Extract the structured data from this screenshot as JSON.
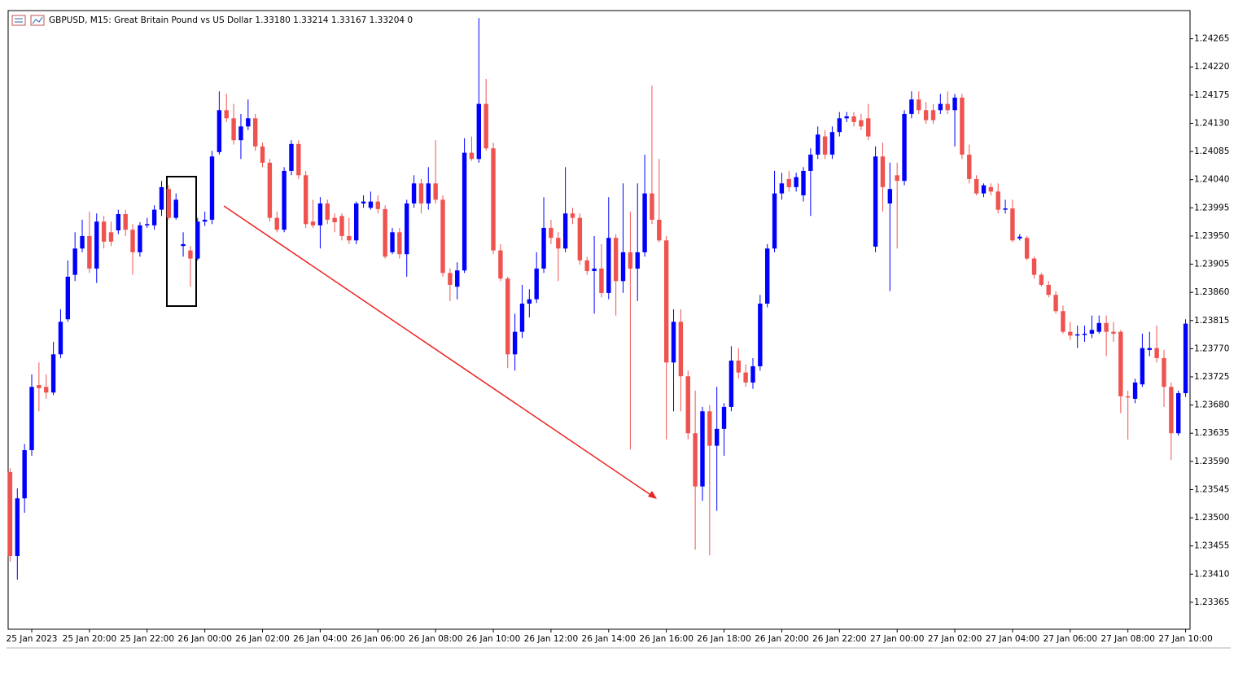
{
  "chart_data": {
    "type": "candlestick",
    "title": "GBPUSD, M15:  Great Britain Pound vs US Dollar  1.33180 1.33214 1.33167 1.33204  0",
    "up_color": "#0000ff",
    "down_color": "#ef5350",
    "ylim": [
      1.23322,
      1.2431
    ],
    "yticks": [
      1.23365,
      {
        "value": 1.2341,
        "label": "1.23410"
      },
      1.23455,
      {
        "value": 1.235,
        "label": "1.23500"
      },
      1.23545,
      {
        "value": 1.2359,
        "label": "1.23590"
      },
      1.23635,
      {
        "value": 1.2368,
        "label": "1.23680"
      },
      1.23725,
      {
        "value": 1.2377,
        "label": "1.23770"
      },
      1.23815,
      {
        "value": 1.2386,
        "label": "1.23860"
      },
      1.23905,
      {
        "value": 1.2395,
        "label": "1.23950"
      },
      1.23995,
      {
        "value": 1.2404,
        "label": "1.24040"
      },
      1.24085,
      {
        "value": 1.2413,
        "label": "1.24130"
      },
      1.24175,
      {
        "value": 1.2422,
        "label": "1.24220"
      },
      1.24265
    ],
    "categories": [
      null,
      null,
      null,
      "25 Jan 2023",
      null,
      null,
      null,
      null,
      null,
      null,
      null,
      "25 Jan 20:00",
      null,
      null,
      null,
      null,
      null,
      null,
      null,
      "25 Jan 22:00",
      null,
      null,
      null,
      null,
      null,
      null,
      null,
      "26 Jan 00:00",
      null,
      null,
      null,
      null,
      null,
      null,
      null,
      "26 Jan 02:00",
      null,
      null,
      null,
      null,
      null,
      null,
      null,
      "26 Jan 04:00",
      null,
      null,
      null,
      null,
      null,
      null,
      null,
      "26 Jan 06:00",
      null,
      null,
      null,
      null,
      null,
      null,
      null,
      "26 Jan 08:00",
      null,
      null,
      null,
      null,
      null,
      null,
      null,
      "26 Jan 10:00",
      null,
      null,
      null,
      null,
      null,
      null,
      null,
      "26 Jan 12:00",
      null,
      null,
      null,
      null,
      null,
      null,
      null,
      "26 Jan 14:00",
      null,
      null,
      null,
      null,
      null,
      null,
      null,
      "26 Jan 16:00",
      null,
      null,
      null,
      null,
      null,
      null,
      null,
      "26 Jan 18:00",
      null,
      null,
      null,
      null,
      null,
      null,
      null,
      "26 Jan 20:00",
      null,
      null,
      null,
      null,
      null,
      null,
      null,
      "26 Jan 22:00",
      null,
      null,
      null,
      null,
      null,
      null,
      null,
      "27 Jan 00:00",
      null,
      null,
      null,
      null,
      null,
      null,
      null,
      "27 Jan 02:00",
      null,
      null,
      null,
      null,
      null,
      null,
      null,
      "27 Jan 04:00",
      null,
      null,
      null,
      null,
      null,
      null,
      null,
      "27 Jan 06:00",
      null,
      null,
      null,
      null,
      null,
      null,
      null,
      "27 Jan 08:00",
      null,
      null,
      null,
      null,
      null,
      null,
      null,
      "27 Jan 10:00"
    ],
    "open": [
      1.23573,
      1.23439,
      1.23531,
      1.23608,
      1.23712,
      1.23709,
      1.237,
      1.23761,
      1.23817,
      1.23888,
      1.2393,
      1.2395,
      1.23898,
      1.23973,
      1.23956,
      1.23959,
      1.23985,
      1.2396,
      1.23924,
      1.23967,
      1.23967,
      1.23992,
      1.24025,
      1.23979,
      1.23934,
      1.23927,
      1.23914,
      1.23973,
      1.23976,
      1.24084,
      1.24151,
      1.24138,
      1.24103,
      1.24125,
      1.24138,
      1.24093,
      1.24067,
      1.23979,
      1.2396,
      1.24054,
      1.24097,
      1.24047,
      1.23973,
      1.23967,
      1.24002,
      1.23979,
      1.23982,
      1.2395,
      1.23943,
      1.24002,
      1.23995,
      1.24005,
      1.23993,
      1.23924,
      1.23956,
      1.23921,
      1.24002,
      1.24034,
      1.24002,
      1.24034,
      1.24008,
      1.23891,
      1.23869,
      1.23895,
      1.24083,
      1.24073,
      1.24161,
      1.2409,
      1.23927,
      1.23882,
      1.23761,
      1.23797,
      1.23842,
      1.23849,
      1.23898,
      1.23963,
      1.23947,
      1.2393,
      1.23986,
      1.23979,
      1.23911,
      1.23894,
      1.23898,
      1.23859,
      1.23947,
      1.23878,
      1.23924,
      1.23898,
      1.23924,
      1.24018,
      1.23976,
      1.23943,
      1.23748,
      1.23813,
      1.23726,
      1.23635,
      1.2355,
      1.2367,
      1.23615,
      1.23642,
      1.23677,
      1.23751,
      1.23732,
      1.23716,
      1.23742,
      1.23842,
      1.2393,
      1.24018,
      1.24041,
      1.24028,
      1.24015,
      1.24054,
      1.2408,
      1.24109,
      1.2408,
      1.24116,
      1.24138,
      1.24141,
      1.24135,
      1.24138,
      1.23933,
      1.24077,
      1.24002,
      1.24047,
      1.24038,
      1.24145,
      1.24168,
      1.24151,
      1.24151,
      1.24151,
      1.24161,
      1.24151,
      1.24171,
      1.2408,
      1.24041,
      1.24018,
      1.24028,
      1.24021,
      1.23992,
      1.23994,
      1.23946,
      1.23947,
      1.23914,
      1.23888,
      1.23872,
      1.23856,
      1.2383,
      1.23797,
      1.23791,
      1.23793,
      1.23794,
      1.23797,
      1.23811,
      1.23797,
      1.23797,
      1.23694,
      1.2369,
      1.23713,
      1.23768,
      1.23771,
      1.23755,
      1.23709,
      1.23635,
      1.23699
    ],
    "high": [
      1.23579,
      1.23547,
      1.23618,
      1.23729,
      1.23748,
      1.23729,
      1.23781,
      1.23833,
      1.23911,
      1.23956,
      1.23976,
      1.23989,
      1.23986,
      1.23982,
      1.23973,
      1.23992,
      1.23992,
      1.23969,
      1.23972,
      1.23979,
      1.23999,
      1.24038,
      1.24031,
      1.24018,
      1.23956,
      1.23934,
      1.23979,
      1.23989,
      1.24086,
      1.24181,
      1.24177,
      1.24161,
      1.24145,
      1.24168,
      1.24145,
      1.24099,
      1.24073,
      1.23989,
      1.2406,
      1.24103,
      1.24103,
      1.24054,
      1.24008,
      1.24012,
      1.24008,
      1.23986,
      1.23986,
      1.23979,
      1.24005,
      1.24015,
      1.24021,
      1.24015,
      1.23999,
      1.23963,
      1.23963,
      1.24008,
      1.24047,
      1.24041,
      1.2406,
      1.24103,
      1.24015,
      1.23898,
      1.23908,
      1.24106,
      1.24109,
      1.24298,
      1.24201,
      1.24099,
      1.23937,
      1.23885,
      1.23826,
      1.23872,
      1.23865,
      1.23924,
      1.24012,
      1.23976,
      1.23956,
      1.2406,
      1.23995,
      1.23986,
      1.23917,
      1.2395,
      1.23937,
      1.24012,
      1.23953,
      1.24034,
      1.23989,
      1.24034,
      1.2408,
      1.2419,
      1.24073,
      1.2395,
      1.23833,
      1.23833,
      1.23735,
      1.23703,
      1.23677,
      1.2368,
      1.23709,
      1.23683,
      1.23774,
      1.23771,
      1.23745,
      1.23755,
      1.23856,
      1.23937,
      1.24054,
      1.24051,
      1.24054,
      1.24051,
      1.2406,
      1.2409,
      1.24125,
      1.24119,
      1.24125,
      1.24148,
      1.24148,
      1.24148,
      1.24145,
      1.24161,
      1.24093,
      1.24099,
      1.24067,
      1.24067,
      1.24151,
      1.24181,
      1.24181,
      1.24164,
      1.24161,
      1.24177,
      1.24181,
      1.24177,
      1.24177,
      1.24096,
      1.24047,
      1.24034,
      1.24034,
      1.24034,
      1.24008,
      1.24008,
      1.23953,
      1.2395,
      1.23917,
      1.23891,
      1.23878,
      1.23862,
      1.23839,
      1.23813,
      1.23807,
      1.23807,
      1.23823,
      1.23823,
      1.23823,
      1.23813,
      1.238,
      1.23703,
      1.23722,
      1.23794,
      1.23797,
      1.23807,
      1.23768,
      1.23716,
      1.23703,
      1.23817
    ],
    "low": [
      1.2343,
      1.23401,
      1.23508,
      1.23599,
      1.2367,
      1.2369,
      1.23696,
      1.23755,
      1.23813,
      1.23878,
      1.23924,
      1.23891,
      1.23875,
      1.2393,
      1.23934,
      1.23953,
      1.2395,
      1.23888,
      1.23917,
      1.23963,
      1.2396,
      1.23982,
      1.23976,
      1.23976,
      1.23917,
      1.23869,
      1.23911,
      1.23966,
      1.23969,
      1.2408,
      1.24132,
      1.24096,
      1.24073,
      1.24119,
      1.24086,
      1.2406,
      1.23973,
      1.23956,
      1.23956,
      1.24047,
      1.24041,
      1.23963,
      1.23963,
      1.2393,
      1.23969,
      1.23956,
      1.23943,
      1.23937,
      1.23937,
      1.23995,
      1.23992,
      1.23986,
      1.23914,
      1.23921,
      1.23914,
      1.23885,
      1.23995,
      1.23986,
      1.23992,
      1.24002,
      1.23885,
      1.23846,
      1.23849,
      1.23891,
      1.2407,
      1.24067,
      1.24086,
      1.23921,
      1.23878,
      1.23739,
      1.23735,
      1.23787,
      1.2382,
      1.23843,
      1.23891,
      1.23937,
      1.23878,
      1.23924,
      1.23969,
      1.23904,
      1.23888,
      1.23826,
      1.23852,
      1.23849,
      1.23823,
      1.23859,
      1.23609,
      1.23846,
      1.23917,
      1.23969,
      1.2394,
      1.23625,
      1.2367,
      1.2367,
      1.23625,
      1.23449,
      1.23527,
      1.2344,
      1.23511,
      1.23599,
      1.2367,
      1.23722,
      1.23709,
      1.23706,
      1.23735,
      1.23836,
      1.23924,
      1.24008,
      1.24021,
      1.24021,
      1.24005,
      1.23982,
      1.24073,
      1.24073,
      1.24073,
      1.24109,
      1.24132,
      1.24125,
      1.24119,
      1.24103,
      1.23924,
      1.23989,
      1.23862,
      1.2393,
      1.24031,
      1.24138,
      1.24145,
      1.24129,
      1.24129,
      1.24145,
      1.24145,
      1.24093,
      1.24073,
      1.24034,
      1.24015,
      1.24012,
      1.24015,
      1.23986,
      1.23986,
      1.2394,
      1.23943,
      1.23911,
      1.23882,
      1.23869,
      1.23852,
      1.23826,
      1.23794,
      1.23784,
      1.23771,
      1.23781,
      1.23787,
      1.23794,
      1.23758,
      1.23781,
      1.23667,
      1.23625,
      1.23683,
      1.23709,
      1.23758,
      1.23748,
      1.23677,
      1.23592,
      1.23631,
      1.23693
    ],
    "close": [
      1.23439,
      1.23531,
      1.23608,
      1.23709,
      1.23707,
      1.237,
      1.23761,
      1.23813,
      1.23885,
      1.2393,
      1.2395,
      1.23898,
      1.23973,
      1.23941,
      1.23941,
      1.23985,
      1.2396,
      1.23924,
      1.23967,
      1.23969,
      1.23992,
      1.24028,
      1.23979,
      1.24008,
      1.23937,
      1.23914,
      1.23973,
      1.23976,
      1.24077,
      1.24151,
      1.24138,
      1.24103,
      1.24125,
      1.24138,
      1.24093,
      1.24067,
      1.23979,
      1.2396,
      1.24054,
      1.24097,
      1.24047,
      1.23969,
      1.23967,
      1.24002,
      1.23976,
      1.23972,
      1.2395,
      1.23943,
      1.24002,
      1.24005,
      1.24005,
      1.23993,
      1.23917,
      1.23956,
      1.23921,
      1.24002,
      1.24034,
      1.24002,
      1.24034,
      1.24008,
      1.23891,
      1.23872,
      1.23895,
      1.24083,
      1.24073,
      1.24161,
      1.2409,
      1.23927,
      1.23882,
      1.23761,
      1.23797,
      1.23842,
      1.23849,
      1.23898,
      1.23963,
      1.23947,
      1.2393,
      1.23986,
      1.23979,
      1.23911,
      1.23894,
      1.23898,
      1.23859,
      1.23947,
      1.23878,
      1.23924,
      1.23898,
      1.23924,
      1.24018,
      1.23976,
      1.23943,
      1.23748,
      1.23813,
      1.23726,
      1.23635,
      1.2355,
      1.2367,
      1.23615,
      1.23642,
      1.23677,
      1.23751,
      1.23732,
      1.23716,
      1.23742,
      1.23842,
      1.2393,
      1.24018,
      1.24034,
      1.24028,
      1.24044,
      1.24054,
      1.2408,
      1.24112,
      1.2408,
      1.24116,
      1.24138,
      1.24141,
      1.24132,
      1.24125,
      1.24109,
      1.24077,
      1.24028,
      1.24025,
      1.24038,
      1.24145,
      1.24168,
      1.24151,
      1.24135,
      1.24135,
      1.24161,
      1.24151,
      1.24171,
      1.2408,
      1.24041,
      1.24018,
      1.24031,
      1.24021,
      1.23992,
      1.23994,
      1.23943,
      1.23949,
      1.23914,
      1.23888,
      1.23872,
      1.23856,
      1.2383,
      1.23797,
      1.23791,
      1.23793,
      1.23794,
      1.238,
      1.23811,
      1.23797,
      1.23794,
      1.23694,
      1.23693,
      1.23716,
      1.23771,
      1.23771,
      1.23755,
      1.23709,
      1.23635,
      1.23699,
      1.2381
    ]
  }
}
